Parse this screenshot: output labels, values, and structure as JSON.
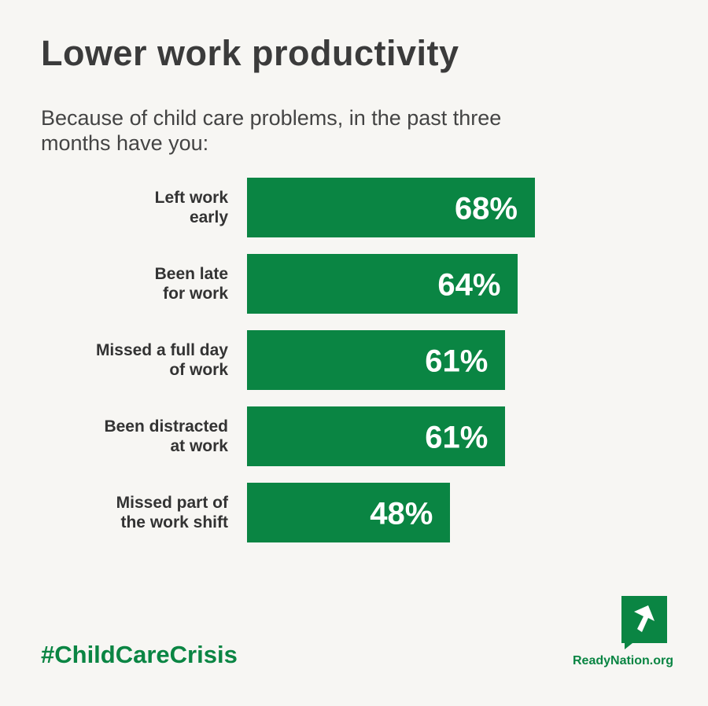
{
  "chart_data": {
    "type": "bar",
    "orientation": "horizontal",
    "title": "Lower work productivity",
    "subtitle": "Because of child care problems, in the past three\nmonths have you:",
    "categories": [
      "Left work\nearly",
      "Been late\nfor work",
      "Missed a full day\nof work",
      "Been distracted\nat work",
      "Missed part of\nthe work shift"
    ],
    "values": [
      68,
      64,
      61,
      61,
      48
    ],
    "value_labels": [
      "68%",
      "64%",
      "61%",
      "61%",
      "48%"
    ],
    "color": "#0a8543"
  },
  "footer": {
    "hashtag": "#ChildCareCrisis",
    "site": "ReadyNation.org"
  }
}
